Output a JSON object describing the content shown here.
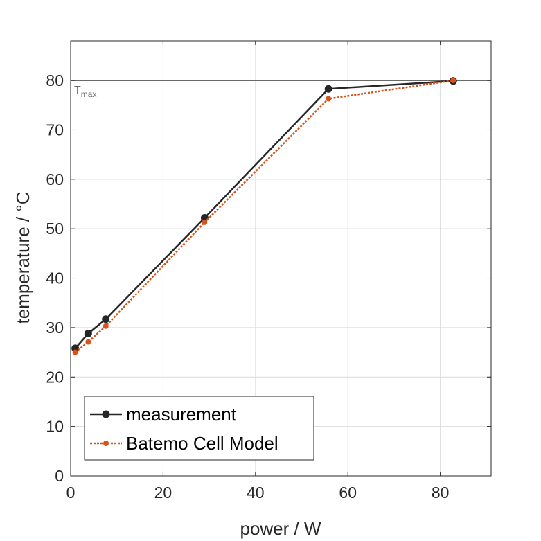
{
  "chart_data": {
    "type": "line",
    "xlabel": "power / W",
    "ylabel": "temperature / °C",
    "xlim": [
      0,
      91
    ],
    "ylim": [
      0,
      88
    ],
    "x_ticks": [
      0,
      20,
      40,
      60,
      80
    ],
    "y_ticks": [
      0,
      10,
      20,
      30,
      40,
      50,
      60,
      70,
      80
    ],
    "grid": true,
    "legend_position": "bottom-left",
    "reference_line": {
      "y": 80,
      "label_main": "T",
      "label_sub": "max",
      "color": "#555555"
    },
    "series": [
      {
        "name": "measurement",
        "color": "#262626",
        "line_style": "solid",
        "marker": "circle",
        "x": [
          1.0,
          3.8,
          7.6,
          29.0,
          55.8,
          82.8
        ],
        "y": [
          25.8,
          28.8,
          31.7,
          52.2,
          78.3,
          79.9
        ]
      },
      {
        "name": "Batemo Cell Model",
        "color": "#d95319",
        "line_style": "dotted",
        "marker": "circle",
        "x": [
          1.0,
          3.8,
          7.6,
          29.0,
          55.8,
          82.8
        ],
        "y": [
          25.0,
          27.1,
          30.3,
          51.3,
          76.3,
          80.0
        ]
      }
    ]
  }
}
